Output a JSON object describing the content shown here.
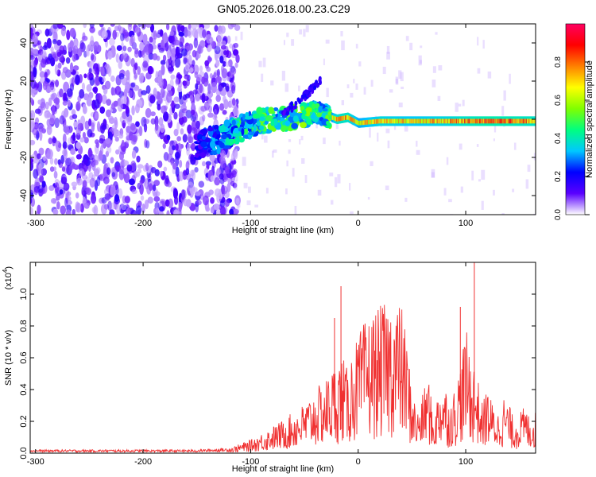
{
  "title": "GN05.2026.018.00.23.C29",
  "chart_data": [
    {
      "type": "heatmap",
      "title": "GN05.2026.018.00.23.C29",
      "xlabel": "Height of straight line (km)",
      "ylabel": "Frequency (Hz)",
      "xlim": [
        -305,
        165
      ],
      "ylim": [
        -50,
        50
      ],
      "x_ticks": [
        -300,
        -200,
        -100,
        0,
        100
      ],
      "y_ticks": [
        -40,
        -20,
        0,
        20,
        40
      ],
      "x_tick_labels": [
        "-300",
        "-200",
        "-100",
        "0",
        "100"
      ],
      "y_tick_labels": [
        "-40",
        "-20",
        "0",
        "20",
        "40"
      ],
      "colorbar": {
        "label": "Normalized spectral amplitude",
        "range": [
          0,
          1
        ],
        "ticks": [
          0,
          0.2,
          0.4,
          0.6,
          0.8
        ],
        "tick_labels": [
          "0.0",
          "0.2",
          "0.4",
          "0.6",
          "0.8"
        ],
        "colors": [
          "#ffffff",
          "#5a00ff",
          "#0000ff",
          "#00c8ff",
          "#00ff80",
          "#80ff00",
          "#ffff00",
          "#ff8000",
          "#ff0000",
          "#ff0060"
        ]
      },
      "regions": [
        {
          "name": "noise",
          "x_range": [
            -305,
            -120
          ],
          "freq_range": [
            -50,
            50
          ],
          "level": 0.1
        },
        {
          "name": "onset",
          "x_range": [
            -150,
            -25
          ],
          "freq_start": [
            -12,
            5
          ],
          "level": 0.35
        },
        {
          "name": "signal-line",
          "x_range": [
            -20,
            165
          ],
          "freq": [
            0,
            -2
          ],
          "level": 0.85
        }
      ],
      "ridge": {
        "x": [
          -150,
          -130,
          -110,
          -90,
          -70,
          -50,
          -40,
          -30,
          -20,
          -10,
          0,
          20,
          50,
          80,
          100,
          120,
          165
        ],
        "freq": [
          -14,
          -10,
          -5,
          -1,
          0,
          2,
          4,
          2,
          0,
          1,
          -2,
          -1,
          -1,
          -1,
          -1,
          -1,
          -1
        ],
        "amp": [
          0.2,
          0.35,
          0.45,
          0.5,
          0.5,
          0.55,
          0.5,
          0.5,
          0.85,
          0.85,
          0.7,
          0.8,
          0.75,
          0.8,
          0.85,
          0.9,
          0.85
        ]
      }
    },
    {
      "type": "line",
      "xlabel": "Height of straight line (km)",
      "ylabel": "SNR (10 * v/v)",
      "scale_label": "(x10",
      "scale_exp": "4",
      "scale_close": ")",
      "xlim": [
        -305,
        165
      ],
      "ylim": [
        0,
        1.2
      ],
      "x_ticks": [
        -300,
        -200,
        -100,
        0,
        100
      ],
      "y_ticks": [
        0,
        0.2,
        0.4,
        0.6,
        0.8,
        1.0
      ],
      "x_tick_labels": [
        "-300",
        "-200",
        "-100",
        "0",
        "100"
      ],
      "y_tick_labels": [
        "0.0",
        "0.2",
        "0.4",
        "0.6",
        "0.8",
        "1.0"
      ],
      "color": "#f03030",
      "series": [
        {
          "envelope_x": [
            -305,
            -250,
            -200,
            -150,
            -120,
            -100,
            -90,
            -80,
            -70,
            -60,
            -50,
            -40,
            -30,
            -25,
            -20,
            -15,
            -10,
            -5,
            0,
            5,
            10,
            15,
            20,
            25,
            30,
            35,
            40,
            45,
            50,
            55,
            60,
            65,
            70,
            75,
            80,
            85,
            90,
            95,
            100,
            105,
            110,
            115,
            120,
            125,
            130,
            135,
            140,
            145,
            150,
            155,
            160,
            165
          ],
          "envelope_y": [
            0.02,
            0.02,
            0.02,
            0.02,
            0.03,
            0.08,
            0.12,
            0.16,
            0.2,
            0.25,
            0.3,
            0.38,
            0.45,
            0.5,
            0.55,
            0.6,
            0.5,
            0.65,
            0.7,
            0.78,
            0.82,
            0.86,
            0.88,
            0.9,
            0.92,
            0.93,
            0.9,
            0.7,
            0.4,
            0.25,
            0.35,
            0.5,
            0.2,
            0.4,
            0.45,
            0.3,
            0.4,
            0.55,
            0.75,
            0.6,
            0.5,
            0.3,
            0.4,
            0.3,
            0.25,
            0.35,
            0.3,
            0.2,
            0.25,
            0.28,
            0.22,
            0.25
          ],
          "spikes": [
            {
              "x": -16,
              "y": 1.05
            },
            {
              "x": 108,
              "y": 1.2
            },
            {
              "x": 95,
              "y": 0.92
            },
            {
              "x": -22,
              "y": 0.85
            }
          ]
        }
      ]
    }
  ]
}
